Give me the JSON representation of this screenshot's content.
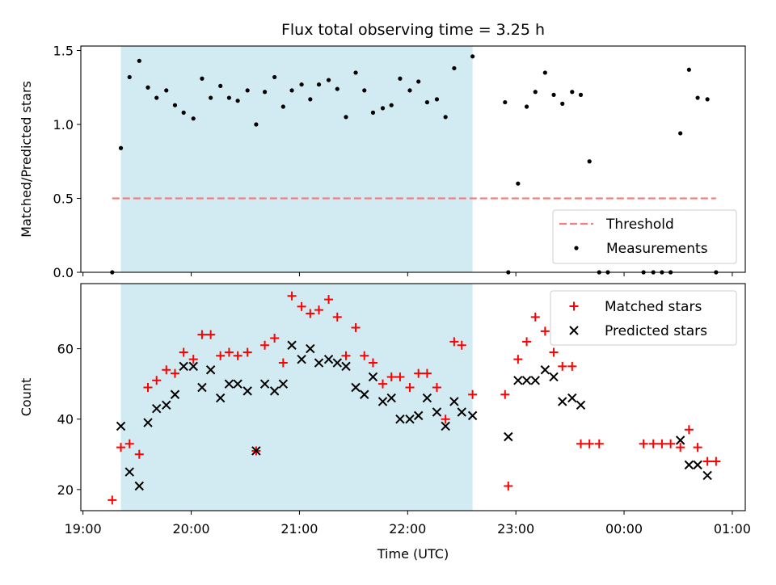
{
  "title": "Flux total observing time = 3.25 h",
  "xlabel": "Time (UTC)",
  "x_ticks": [
    "19:00",
    "20:00",
    "21:00",
    "22:00",
    "23:00",
    "00:00",
    "01:00"
  ],
  "x_tick_hours": [
    19,
    20,
    21,
    22,
    23,
    24,
    25
  ],
  "x_range_hours": [
    18.98,
    25.12
  ],
  "shaded_span_hours": [
    19.35,
    22.6
  ],
  "colors": {
    "shade": "#add8e6",
    "threshold": "#f08080",
    "matched": "#ff0000",
    "predicted": "#000000"
  },
  "chart_data": [
    {
      "type": "scatter",
      "ylabel": "Matched/Predicted stars",
      "ylim": [
        0,
        1.53
      ],
      "y_ticks": [
        "0.0",
        "0.5",
        "1.0",
        "1.5"
      ],
      "y_tick_values": [
        0,
        0.5,
        1.0,
        1.5
      ],
      "threshold": {
        "name": "Threshold",
        "value": 0.5,
        "x_range": [
          19.27,
          24.85
        ]
      },
      "legend": {
        "position": "lower-right",
        "entries": [
          "Threshold",
          "Measurements"
        ]
      },
      "series": [
        {
          "name": "Measurements",
          "x": [
            19.27,
            19.35,
            19.43,
            19.52,
            19.6,
            19.68,
            19.77,
            19.85,
            19.93,
            20.02,
            20.1,
            20.18,
            20.27,
            20.35,
            20.43,
            20.52,
            20.6,
            20.68,
            20.77,
            20.85,
            20.93,
            21.02,
            21.1,
            21.18,
            21.27,
            21.35,
            21.43,
            21.52,
            21.6,
            21.68,
            21.77,
            21.85,
            21.93,
            22.02,
            22.1,
            22.18,
            22.27,
            22.35,
            22.43,
            22.6,
            22.9,
            22.93,
            23.02,
            23.1,
            23.18,
            23.27,
            23.35,
            23.43,
            23.52,
            23.6,
            23.68,
            23.77,
            23.85,
            24.18,
            24.27,
            24.35,
            24.43,
            24.52,
            24.6,
            24.68,
            24.77,
            24.85
          ],
          "y": [
            0.0,
            0.84,
            1.32,
            1.43,
            1.25,
            1.18,
            1.23,
            1.13,
            1.08,
            1.04,
            1.31,
            1.18,
            1.26,
            1.18,
            1.16,
            1.23,
            1.0,
            1.22,
            1.32,
            1.12,
            1.23,
            1.27,
            1.17,
            1.27,
            1.3,
            1.24,
            1.05,
            1.35,
            1.23,
            1.08,
            1.11,
            1.13,
            1.31,
            1.23,
            1.29,
            1.15,
            1.17,
            1.05,
            1.38,
            1.46,
            1.15,
            0.0,
            0.6,
            1.12,
            1.22,
            1.35,
            1.2,
            1.14,
            1.22,
            1.2,
            0.75,
            0.0,
            0.0,
            0.0,
            0.0,
            0.0,
            0.0,
            0.94,
            1.37,
            1.18,
            1.17,
            0.0
          ]
        }
      ]
    },
    {
      "type": "scatter",
      "ylabel": "Count",
      "ylim": [
        14,
        78.5
      ],
      "y_ticks": [
        "20",
        "40",
        "60"
      ],
      "y_tick_values": [
        20,
        40,
        60
      ],
      "legend": {
        "position": "top-right",
        "entries": [
          "Matched stars",
          "Predicted stars"
        ]
      },
      "series": [
        {
          "name": "Matched stars",
          "x": [
            19.27,
            19.35,
            19.43,
            19.52,
            19.6,
            19.68,
            19.77,
            19.85,
            19.93,
            20.02,
            20.1,
            20.18,
            20.27,
            20.35,
            20.43,
            20.52,
            20.6,
            20.68,
            20.77,
            20.85,
            20.93,
            21.02,
            21.1,
            21.18,
            21.27,
            21.35,
            21.43,
            21.52,
            21.6,
            21.68,
            21.77,
            21.85,
            21.93,
            22.02,
            22.1,
            22.18,
            22.27,
            22.35,
            22.43,
            22.5,
            22.6,
            22.9,
            22.93,
            23.02,
            23.1,
            23.18,
            23.27,
            23.35,
            23.43,
            23.52,
            23.6,
            23.68,
            23.77,
            24.18,
            24.27,
            24.35,
            24.43,
            24.52,
            24.6,
            24.68,
            24.77,
            24.85
          ],
          "y": [
            17,
            32,
            33,
            30,
            49,
            51,
            54,
            53,
            59,
            57,
            64,
            64,
            58,
            59,
            58,
            59,
            31,
            61,
            63,
            56,
            75,
            72,
            70,
            71,
            74,
            69,
            58,
            66,
            58,
            56,
            50,
            52,
            52,
            49,
            53,
            53,
            49,
            40,
            62,
            61,
            47,
            47,
            21,
            57,
            62,
            69,
            65,
            59,
            55,
            55,
            33,
            33,
            33,
            33,
            33,
            33,
            33,
            32,
            37,
            32,
            28,
            28
          ]
        },
        {
          "name": "Predicted stars",
          "x": [
            19.35,
            19.43,
            19.52,
            19.6,
            19.68,
            19.77,
            19.85,
            19.93,
            20.02,
            20.1,
            20.18,
            20.27,
            20.35,
            20.43,
            20.52,
            20.6,
            20.68,
            20.77,
            20.85,
            20.93,
            21.02,
            21.1,
            21.18,
            21.27,
            21.35,
            21.43,
            21.52,
            21.6,
            21.68,
            21.77,
            21.85,
            21.93,
            22.02,
            22.1,
            22.18,
            22.27,
            22.35,
            22.43,
            22.5,
            22.6,
            22.93,
            23.02,
            23.1,
            23.18,
            23.27,
            23.35,
            23.43,
            23.52,
            23.6,
            24.52,
            24.6,
            24.68,
            24.77
          ],
          "y": [
            38,
            25,
            21,
            39,
            43,
            44,
            47,
            55,
            55,
            49,
            54,
            46,
            50,
            50,
            48,
            31,
            50,
            48,
            50,
            61,
            57,
            60,
            56,
            57,
            56,
            55,
            49,
            47,
            52,
            45,
            46,
            40,
            40,
            41,
            46,
            42,
            38,
            45,
            42,
            41,
            35,
            51,
            51,
            51,
            54,
            52,
            45,
            46,
            44,
            34,
            27,
            27,
            24
          ]
        }
      ]
    }
  ]
}
